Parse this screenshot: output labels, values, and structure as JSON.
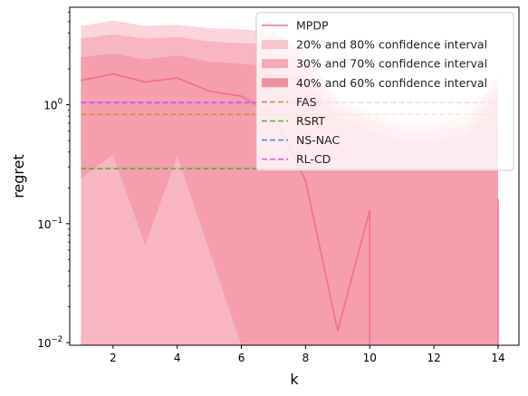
{
  "chart_data": {
    "type": "area",
    "title": "",
    "xlabel": "k",
    "ylabel": "regret",
    "xlim": [
      0.65,
      14.65
    ],
    "ylim": [
      0.0095,
      6.6
    ],
    "yscale": "log",
    "x_ticks": [
      2,
      4,
      6,
      8,
      10,
      12,
      14
    ],
    "x_tick_labels": [
      "2",
      "4",
      "6",
      "8",
      "10",
      "12",
      "14"
    ],
    "y_ticks": [
      0.01,
      0.1,
      1
    ],
    "y_tick_labels": [
      [
        "10",
        "−2"
      ],
      [
        "10",
        "−1"
      ],
      [
        "10",
        "0"
      ]
    ],
    "grid": false,
    "legend_position": "top-right",
    "x": [
      1,
      2,
      3,
      4,
      5,
      6,
      7,
      8,
      9,
      10,
      11,
      12,
      13,
      14
    ],
    "bands": [
      {
        "name": "20% and 80% confidence interval",
        "color": "#ef5775",
        "opacity": 0.25,
        "lower": [
          0.24,
          0.38,
          0.066,
          0.37,
          0.06,
          0.0001,
          0.0001,
          0.0001,
          0.0001,
          0.0001,
          0.0001,
          0.0001,
          0.0001,
          0.0001
        ],
        "upper": [
          4.6,
          5.1,
          4.6,
          4.7,
          4.4,
          4.3,
          4.1,
          2.7,
          1.1,
          0.85,
          0.7,
          0.7,
          0.8,
          1.7
        ]
      },
      {
        "name": "30% and 70% confidence interval",
        "color": "#ef5775",
        "opacity": 0.25,
        "lower": [
          0.0001,
          0.0001,
          0.0001,
          0.0001,
          0.0001,
          0.0001,
          0.0001,
          0.0001,
          0.0001,
          0.0001,
          0.0001,
          0.0001,
          0.0001,
          0.0001
        ],
        "upper": [
          3.6,
          3.9,
          3.6,
          3.7,
          3.4,
          3.3,
          3.2,
          2.2,
          0.95,
          0.75,
          0.6,
          0.6,
          0.68,
          1.45
        ]
      },
      {
        "name": "40% and 60% confidence interval",
        "color": "#ef5775",
        "opacity": 0.25,
        "lower": [
          0.0001,
          0.0001,
          0.0001,
          0.0001,
          0.0001,
          0.0001,
          0.0001,
          0.0001,
          0.0001,
          0.0001,
          0.0001,
          0.0001,
          0.0001,
          0.0001
        ],
        "upper": [
          2.5,
          2.7,
          2.4,
          2.6,
          2.3,
          2.2,
          2.1,
          1.6,
          0.8,
          0.62,
          0.5,
          0.5,
          0.56,
          1.2
        ]
      }
    ],
    "series": [
      {
        "name": "MPDP",
        "style": "solid",
        "color": "#f07090",
        "values": [
          1.6,
          1.82,
          1.55,
          1.68,
          1.3,
          1.18,
          0.82,
          0.23,
          0.0125,
          0.13,
          null,
          null,
          null,
          null
        ]
      },
      {
        "name": "FAS",
        "style": "dashed",
        "color": "#c4983a",
        "values": [
          0.83,
          0.83,
          0.83,
          0.83,
          0.83,
          0.83,
          0.83,
          0.83,
          0.83,
          0.83,
          0.83,
          0.83,
          0.83,
          0.83
        ]
      },
      {
        "name": "RSRT",
        "style": "dashed",
        "color": "#4caf3c",
        "values": [
          0.29,
          0.29,
          0.29,
          0.29,
          0.29,
          0.29,
          0.29,
          0.29,
          0.29,
          0.29,
          0.29,
          0.29,
          0.29,
          0.29
        ]
      },
      {
        "name": "NS-NAC",
        "style": "dashed",
        "color": "#3d8ee8",
        "values": [
          1.04,
          1.04,
          1.04,
          1.04,
          1.04,
          1.04,
          1.04,
          1.04,
          1.04,
          1.04,
          1.04,
          1.04,
          1.04,
          1.04
        ]
      },
      {
        "name": "RL-CD",
        "style": "dashed",
        "color": "#ea5cf0",
        "values": [
          1.05,
          1.05,
          1.05,
          1.05,
          1.05,
          1.05,
          1.05,
          1.05,
          1.05,
          1.05,
          1.05,
          1.05,
          1.05,
          1.05
        ]
      }
    ],
    "vertical_drops": [
      {
        "x": 10,
        "from": 0.13,
        "color": "#f07090"
      },
      {
        "x": 14,
        "from": 0.16,
        "color": "#f07090"
      }
    ],
    "legend_entries": [
      {
        "label": "MPDP",
        "kind": "line",
        "color": "#f07090"
      },
      {
        "label": "20% and 80% confidence interval",
        "kind": "patch",
        "color": "#f7c3cc"
      },
      {
        "label": "30% and 70% confidence interval",
        "kind": "patch",
        "color": "#f3a9b6"
      },
      {
        "label": "40% and 60% confidence interval",
        "kind": "patch",
        "color": "#ee8fa0"
      },
      {
        "label": "FAS",
        "kind": "dashed",
        "color": "#c4983a"
      },
      {
        "label": "RSRT",
        "kind": "dashed",
        "color": "#4caf3c"
      },
      {
        "label": "NS-NAC",
        "kind": "dashed",
        "color": "#3d8ee8"
      },
      {
        "label": "RL-CD",
        "kind": "dashed",
        "color": "#ea5cf0"
      }
    ]
  }
}
